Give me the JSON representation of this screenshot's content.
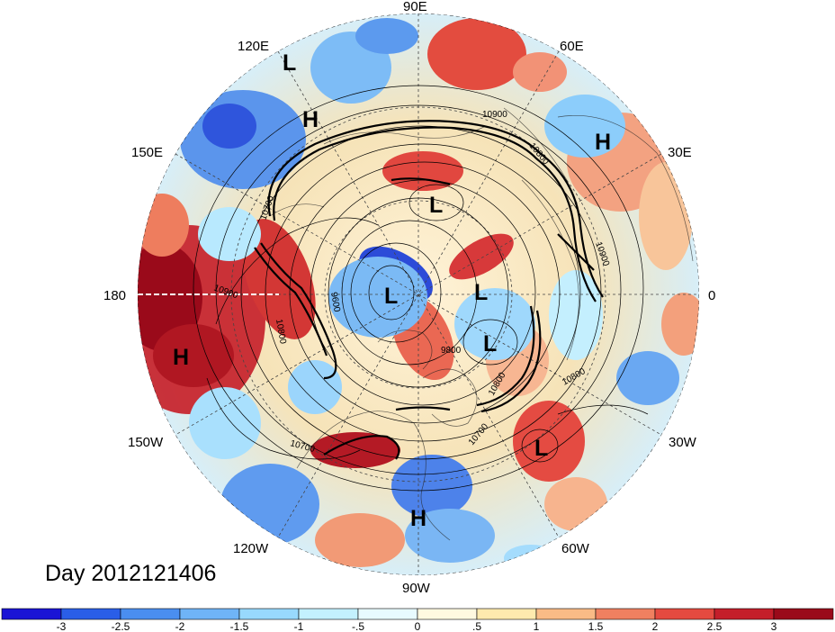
{
  "map": {
    "projection": "north-polar-stereographic",
    "longitude_labels": [
      "90E",
      "60E",
      "30E",
      "0",
      "30W",
      "60W",
      "90W",
      "120W",
      "150W",
      "180",
      "150E",
      "120E"
    ],
    "pressure_centers": [
      {
        "label": "L",
        "where": "northeast Siberia"
      },
      {
        "label": "H",
        "where": "Russian Far East"
      },
      {
        "label": "H",
        "where": "western Russia"
      },
      {
        "label": "L",
        "where": "northern Siberia"
      },
      {
        "label": "L",
        "where": "central Arctic"
      },
      {
        "label": "L",
        "where": "Barents/Kara sea"
      },
      {
        "label": "L",
        "where": "Greenland"
      },
      {
        "label": "H",
        "where": "northeast Pacific"
      },
      {
        "label": "L",
        "where": "central Atlantic"
      },
      {
        "label": "H",
        "where": "Gulf of Mexico"
      }
    ],
    "contour_labels": [
      "10900",
      "10800",
      "10900",
      "10700",
      "10900",
      "10800",
      "9600",
      "9800",
      "10800",
      "10700",
      "10700",
      "10800",
      "10800",
      "10700"
    ],
    "title": "Day 2012121406",
    "colors": {
      "strong_negative": "#2f3fd8",
      "negative": "#5d99ee",
      "weak_negative": "#bfeefe",
      "neutral": "#ffffff",
      "weak_positive": "#fdedc2",
      "positive": "#f08a6a",
      "strong_positive": "#a4101d"
    }
  },
  "colorbar": {
    "ticks": [
      "-3",
      "-2.5",
      "-2",
      "-1.5",
      "-1",
      "-.5",
      "0",
      ".5",
      "1",
      "1.5",
      "2",
      "2.5",
      "3"
    ],
    "colors": [
      "#1a14d5",
      "#2a5ee8",
      "#4a8ef0",
      "#6fb4f7",
      "#98d9fd",
      "#c3f1fe",
      "#e8fbff",
      "#fff9e0",
      "#feeaae",
      "#f9bb86",
      "#f08060",
      "#e54a40",
      "#c41e2a",
      "#9a0a1a"
    ]
  }
}
